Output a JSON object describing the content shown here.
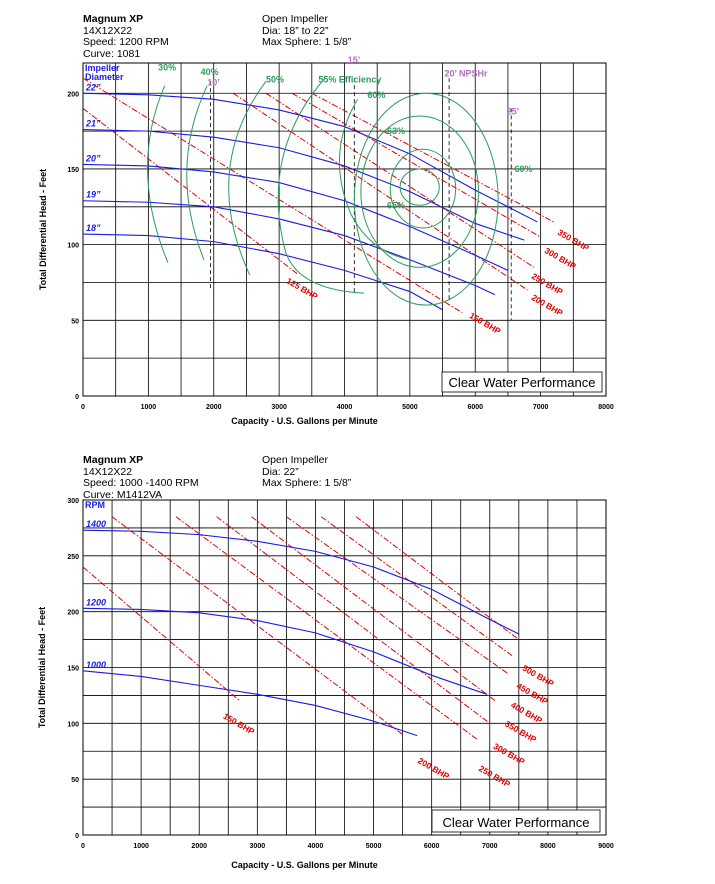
{
  "charts_header": [
    {
      "left": [
        "Magnum XP",
        "14X12X22",
        "Speed: 1200 RPM",
        "Curve: 1081"
      ],
      "right": [
        "Open Impeller",
        "Dia: 18” to 22”",
        "Max Sphere: 1 5/8”"
      ]
    },
    {
      "left": [
        "Magnum XP",
        "14X12X22",
        "Speed: 1000 -1400 RPM",
        "Curve: M1412VA"
      ],
      "right": [
        "Open Impeller",
        "Dia: 22”",
        "Max Sphere: 1 5/8”"
      ]
    }
  ],
  "colors": {
    "head_curve": "#1a1ae6",
    "bhp_line": "#e00000",
    "efficiency": "#2e9a5e",
    "npshr": "#b070c0",
    "grid": "#000000"
  },
  "chart_data": [
    {
      "type": "line",
      "xlabel": "Capacity - U.S. Gallons per Minute",
      "ylabel": "Total Differential Head - Feet",
      "xlim": [
        0,
        8000
      ],
      "ylim": [
        0,
        220
      ],
      "x_ticks": [
        "0",
        "1000",
        "2000",
        "3000",
        "4000",
        "5000",
        "6000",
        "7000",
        "8000"
      ],
      "y_ticks": [
        "0",
        "50",
        "100",
        "150",
        "200"
      ],
      "badge": "Clear Water Performance",
      "series_group_label": [
        "Impeller",
        "Diameter"
      ],
      "series": [
        {
          "name": "22”",
          "x": [
            0,
            1000,
            2000,
            3000,
            4000,
            5000,
            6000,
            6950
          ],
          "y": [
            200,
            199,
            196,
            189,
            178,
            160,
            136,
            115
          ]
        },
        {
          "name": "21”",
          "x": [
            0,
            1000,
            2000,
            3000,
            4000,
            5000,
            6000,
            6750
          ],
          "y": [
            176,
            175,
            171,
            164,
            152,
            135,
            114,
            103
          ]
        },
        {
          "name": "20”",
          "x": [
            0,
            1000,
            2000,
            3000,
            4000,
            5000,
            6000,
            6500
          ],
          "y": [
            153,
            152,
            148,
            141,
            129,
            112,
            93,
            83
          ]
        },
        {
          "name": "19”",
          "x": [
            0,
            1000,
            2000,
            3000,
            4000,
            5000,
            6000,
            6300
          ],
          "y": [
            129,
            128,
            125,
            117,
            106,
            90,
            73,
            67
          ]
        },
        {
          "name": "18”",
          "x": [
            0,
            1000,
            2000,
            3000,
            4000,
            5000,
            5500
          ],
          "y": [
            107,
            106,
            102,
            94,
            83,
            69,
            57
          ]
        }
      ],
      "bhp_lines": [
        {
          "label": "125 BHP",
          "x": [
            0,
            3300
          ],
          "y": [
            190,
            80
          ]
        },
        {
          "label": "150 BHP",
          "x": [
            0,
            5800
          ],
          "y": [
            210,
            55
          ]
        },
        {
          "label": "200 BHP",
          "x": [
            2300,
            6800
          ],
          "y": [
            200,
            70
          ]
        },
        {
          "label": "250 BHP",
          "x": [
            2800,
            6900
          ],
          "y": [
            200,
            85
          ]
        },
        {
          "label": "300 BHP",
          "x": [
            3200,
            7000
          ],
          "y": [
            200,
            105
          ]
        },
        {
          "label": "350 BHP",
          "x": [
            3500,
            7200
          ],
          "y": [
            200,
            115
          ]
        }
      ],
      "bhp_label_pos": [
        {
          "label": "125 BHP",
          "x": 3100,
          "y": 75
        },
        {
          "label": "150 BHP",
          "x": 5900,
          "y": 52
        },
        {
          "label": "200 BHP",
          "x": 6850,
          "y": 64
        },
        {
          "label": "250 BHP",
          "x": 6850,
          "y": 78
        },
        {
          "label": "300 BHP",
          "x": 7050,
          "y": 95
        },
        {
          "label": "350 BHP",
          "x": 7250,
          "y": 107
        }
      ],
      "efficiency_labels": [
        "30%",
        "40%",
        "50%",
        "55% Efficiency",
        "60%",
        "63%",
        "65%",
        "60%"
      ],
      "npshr": [
        {
          "label": "10’",
          "x": 1950
        },
        {
          "label": "15’",
          "x": 4150
        },
        {
          "label": "20’ NPSHr",
          "x": 5600
        },
        {
          "label": "25’",
          "x": 6550
        }
      ]
    },
    {
      "type": "line",
      "xlabel": "Capacity - U.S. Gallons per Minute",
      "ylabel": "Total Differential Head - Feet",
      "xlim": [
        0,
        9000
      ],
      "ylim": [
        0,
        300
      ],
      "x_ticks": [
        "0",
        "1000",
        "2000",
        "3000",
        "4000",
        "5000",
        "6000",
        "7000",
        "8000",
        "9000"
      ],
      "y_ticks": [
        "0",
        "50",
        "100",
        "150",
        "200",
        "250",
        "300"
      ],
      "badge": "Clear Water Performance",
      "series_group_label": [
        "RPM"
      ],
      "series": [
        {
          "name": "1400",
          "x": [
            0,
            1000,
            2000,
            3000,
            4000,
            5000,
            6000,
            7000,
            7500
          ],
          "y": [
            273,
            272,
            269,
            263,
            254,
            240,
            220,
            193,
            180
          ]
        },
        {
          "name": "1200",
          "x": [
            0,
            1000,
            2000,
            3000,
            4000,
            5000,
            6000,
            6950
          ],
          "y": [
            203,
            202,
            199,
            192,
            181,
            164,
            143,
            126
          ]
        },
        {
          "name": "1000",
          "x": [
            0,
            1000,
            2000,
            3000,
            4000,
            5000,
            5750
          ],
          "y": [
            147,
            142,
            134,
            126,
            116,
            102,
            89
          ]
        }
      ],
      "bhp_lines": [
        {
          "label": "150 BHP",
          "x": [
            0,
            2700
          ],
          "y": [
            240,
            120
          ]
        },
        {
          "label": "200 BHP",
          "x": [
            500,
            5500
          ],
          "y": [
            285,
            90
          ]
        },
        {
          "label": "250 BHP",
          "x": [
            1600,
            6800
          ],
          "y": [
            285,
            85
          ]
        },
        {
          "label": "300 BHP",
          "x": [
            2300,
            7000
          ],
          "y": [
            285,
            100
          ]
        },
        {
          "label": "350 BHP",
          "x": [
            2900,
            7100
          ],
          "y": [
            285,
            120
          ]
        },
        {
          "label": "400 BHP",
          "x": [
            3500,
            7300
          ],
          "y": [
            285,
            145
          ]
        },
        {
          "label": "450 BHP",
          "x": [
            4100,
            7400
          ],
          "y": [
            285,
            160
          ]
        },
        {
          "label": "500 BHP",
          "x": [
            4700,
            7500
          ],
          "y": [
            285,
            175
          ]
        }
      ],
      "bhp_label_pos": [
        {
          "label": "150 BHP",
          "x": 2400,
          "y": 105
        },
        {
          "label": "200 BHP",
          "x": 5750,
          "y": 65
        },
        {
          "label": "250 BHP",
          "x": 6800,
          "y": 58
        },
        {
          "label": "300 BHP",
          "x": 7050,
          "y": 78
        },
        {
          "label": "350 BHP",
          "x": 7250,
          "y": 98
        },
        {
          "label": "400 BHP",
          "x": 7350,
          "y": 115
        },
        {
          "label": "450 BHP",
          "x": 7450,
          "y": 132
        },
        {
          "label": "500 BHP",
          "x": 7550,
          "y": 148
        }
      ]
    }
  ]
}
